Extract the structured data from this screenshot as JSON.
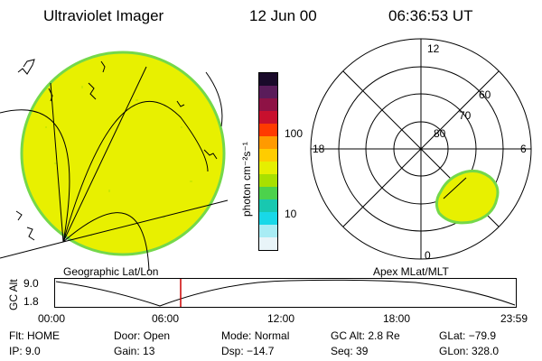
{
  "header": {
    "instrument": "Ultraviolet Imager",
    "date": "12 Jun 00",
    "time": "06:36:53 UT"
  },
  "colorbar": {
    "unit_label": "photon cm⁻²s⁻¹",
    "ticks": [
      "100",
      "10"
    ],
    "colors": [
      "#1a0a2a",
      "#5a1c5a",
      "#8e1245",
      "#c8102e",
      "#ff3a00",
      "#ff9a00",
      "#ffcc00",
      "#e6ef00",
      "#a8e000",
      "#4cd24c",
      "#18c8b0",
      "#18d8e8",
      "#a8ecf4",
      "#e8f4f8"
    ]
  },
  "geo_panel": {
    "label": "Geographic Lat/Lon",
    "disk_color": "#e8f000",
    "edge_color": "#74d84a"
  },
  "polar_panel": {
    "label": "Apex MLat/MLT",
    "mlt_labels": {
      "top": "12",
      "left": "18",
      "right": "6",
      "bottom": "0"
    },
    "lat_labels": [
      "60",
      "70",
      "80"
    ]
  },
  "altitude_plot": {
    "ylabel": "GC Alt",
    "y_ticks": [
      "9.0",
      "1.8"
    ],
    "x_ticks": [
      "00:00",
      "06:00",
      "12:00",
      "18:00",
      "23:59"
    ],
    "marker_color": "#cc0000"
  },
  "status": {
    "row1": [
      {
        "key": "Flt:",
        "value": "HOME"
      },
      {
        "key": "Door:",
        "value": "Open"
      },
      {
        "key": "Mode:",
        "value": "Normal"
      },
      {
        "key": "GC Alt:",
        "value": "2.8 Re"
      },
      {
        "key": "GLat:",
        "value": "−79.9"
      }
    ],
    "row2": [
      {
        "key": "IP:",
        "value": "9.0"
      },
      {
        "key": "Gain:",
        "value": "13"
      },
      {
        "key": "Dsp:",
        "value": "−14.7"
      },
      {
        "key": "Seq:",
        "value": "39"
      },
      {
        "key": "GLon:",
        "value": "328.0"
      }
    ]
  }
}
